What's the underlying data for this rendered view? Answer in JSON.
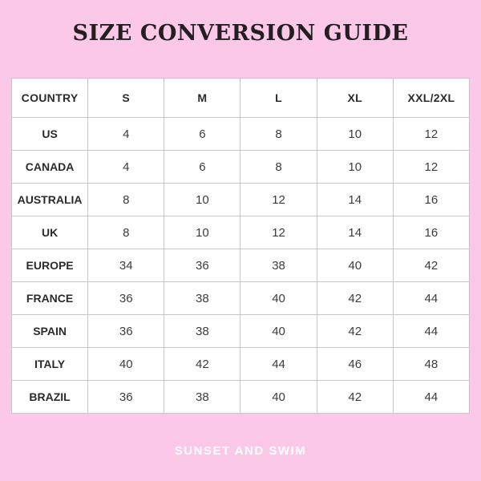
{
  "page": {
    "title": "SIZE CONVERSION GUIDE",
    "brand": "SUNSET AND SWIM"
  },
  "colors": {
    "background": "#fbc8e8",
    "table_background": "#ffffff",
    "grid_line": "#c6c6c6",
    "outer_border": "#9f9f9f",
    "title_text": "#231f20",
    "table_text": "#2b2b2b",
    "number_text": "#3c3c3c",
    "brand_text": "#ffffff"
  },
  "table": {
    "columns": [
      "COUNTRY",
      "S",
      "M",
      "L",
      "XL",
      "XXL/2XL"
    ],
    "rows": [
      {
        "country": "US",
        "sizes": [
          "4",
          "6",
          "8",
          "10",
          "12"
        ]
      },
      {
        "country": "CANADA",
        "sizes": [
          "4",
          "6",
          "8",
          "10",
          "12"
        ]
      },
      {
        "country": "AUSTRALIA",
        "sizes": [
          "8",
          "10",
          "12",
          "14",
          "16"
        ]
      },
      {
        "country": "UK",
        "sizes": [
          "8",
          "10",
          "12",
          "14",
          "16"
        ]
      },
      {
        "country": "EUROPE",
        "sizes": [
          "34",
          "36",
          "38",
          "40",
          "42"
        ]
      },
      {
        "country": "FRANCE",
        "sizes": [
          "36",
          "38",
          "40",
          "42",
          "44"
        ]
      },
      {
        "country": "SPAIN",
        "sizes": [
          "36",
          "38",
          "40",
          "42",
          "44"
        ]
      },
      {
        "country": "ITALY",
        "sizes": [
          "40",
          "42",
          "44",
          "46",
          "48"
        ]
      },
      {
        "country": "BRAZIL",
        "sizes": [
          "36",
          "38",
          "40",
          "42",
          "44"
        ]
      }
    ]
  }
}
